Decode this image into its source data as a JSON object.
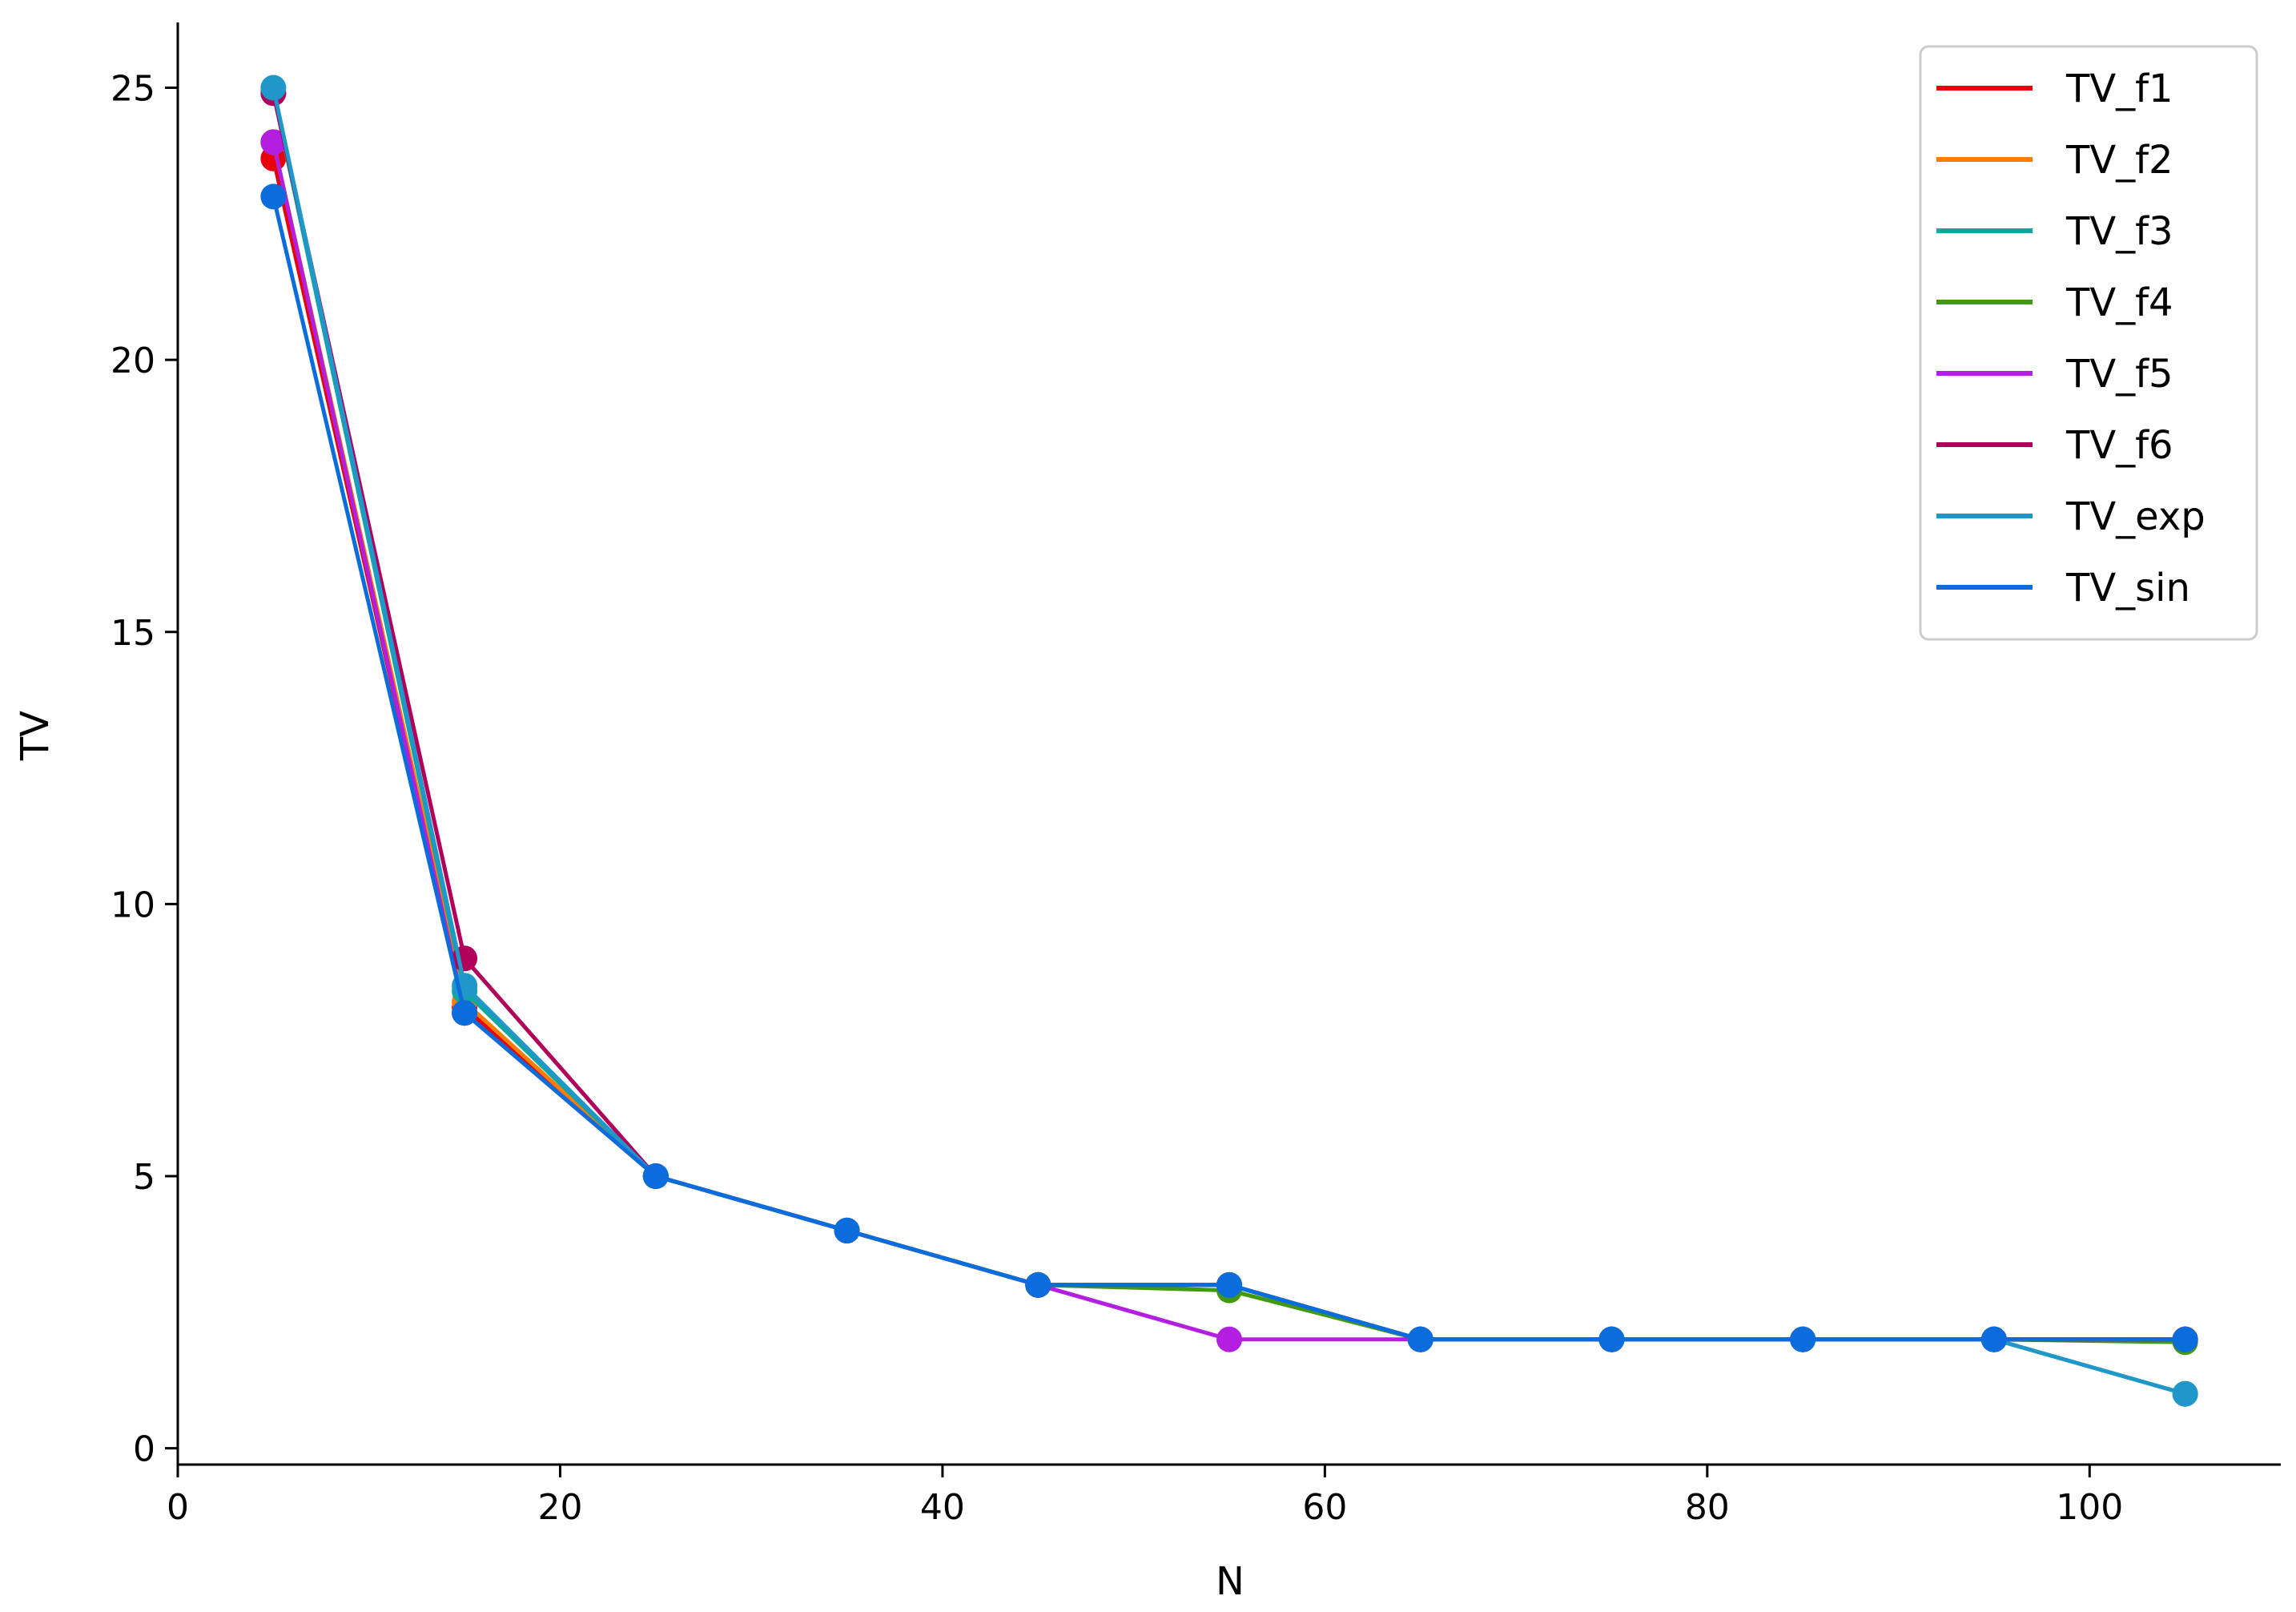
{
  "chart_data": {
    "type": "line",
    "xlabel": "N",
    "ylabel": "TV",
    "xlim": [
      0,
      110
    ],
    "ylim": [
      -0.3,
      26.2
    ],
    "xticks": [
      0,
      20,
      40,
      60,
      80,
      100
    ],
    "yticks": [
      0,
      5,
      10,
      15,
      20,
      25
    ],
    "grid": false,
    "legend_position": "top-right",
    "x": [
      5,
      15,
      25,
      35,
      45,
      55,
      65,
      75,
      85,
      95,
      105
    ],
    "series": [
      {
        "name": "TV_f1",
        "color": "#e8000b",
        "values": [
          23.7,
          8.1,
          5,
          4,
          3,
          3,
          2,
          2,
          2,
          2,
          2
        ]
      },
      {
        "name": "TV_f2",
        "color": "#ff7c00",
        "values": [
          24.0,
          8.2,
          5,
          4,
          3,
          3,
          2,
          2,
          2,
          2,
          2
        ]
      },
      {
        "name": "TV_f3",
        "color": "#12a79d",
        "values": [
          24.9,
          8.4,
          5,
          4,
          3,
          3,
          2,
          2,
          2,
          2,
          1
        ]
      },
      {
        "name": "TV_f4",
        "color": "#3f9b0b",
        "values": [
          24.0,
          8.0,
          5,
          4,
          3,
          2.9,
          2,
          2,
          2,
          2,
          1.95
        ]
      },
      {
        "name": "TV_f5",
        "color": "#b31ee0",
        "values": [
          24.0,
          8.0,
          5,
          4,
          3,
          2,
          2,
          2,
          2,
          2,
          2
        ]
      },
      {
        "name": "TV_f6",
        "color": "#b1005a",
        "values": [
          24.9,
          9.0,
          5,
          4,
          3,
          3,
          2,
          2,
          2,
          2,
          2
        ]
      },
      {
        "name": "TV_exp",
        "color": "#1f97c9",
        "values": [
          25.0,
          8.5,
          5,
          4,
          3,
          3,
          2,
          2,
          2,
          2,
          1
        ]
      },
      {
        "name": "TV_sin",
        "color": "#0b6cdc",
        "values": [
          23.0,
          8.0,
          5,
          4,
          3,
          3,
          2,
          2,
          2,
          2,
          2
        ]
      }
    ]
  }
}
